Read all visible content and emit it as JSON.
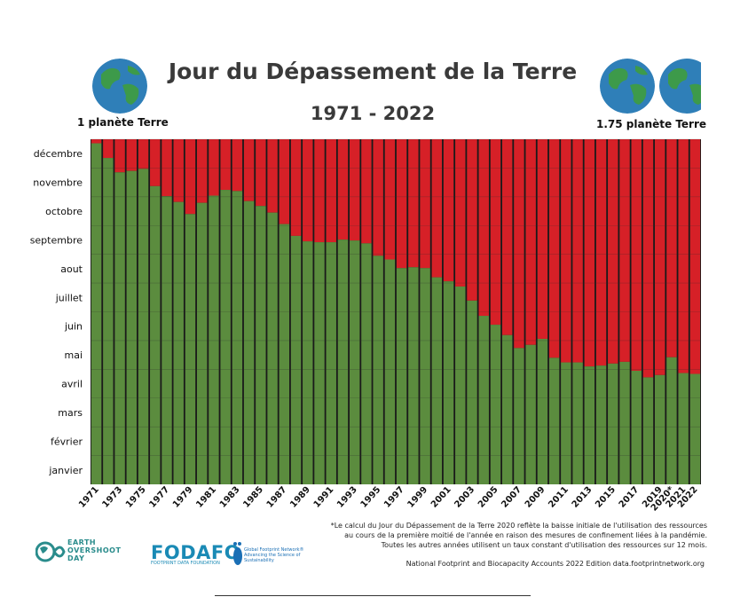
{
  "title": "Jour du Dépassement de la Terre",
  "subtitle": "1971 - 2022",
  "left_caption": "1 planète Terre",
  "right_caption": "1.75 planète Terre",
  "footnote_lines": [
    "*Le calcul du Jour du Dépassement de la Terre 2020 reflète la baisse initiale de l'utilisation des ressources",
    "au cours de la première moitié de l'année en raison des mesures de confinement liées à la pandémie.",
    "Toutes les autres années utilisent un taux constant d'utilisation des ressources sur 12 mois."
  ],
  "source": "National Footprint and Biocapacity Accounts 2022  Edition data.footprintnetwork.org",
  "logos": {
    "earth_overshoot_day": "EARTH OVERSHOOT DAY",
    "fodafo": "FODAFO",
    "fodafo_sub": "FOOTPRINT DATA FOUNDATION",
    "gfn": "Global Footprint Network® Advancing the Science of Sustainability"
  },
  "colors": {
    "green": "#5b8c3e",
    "red": "#d62027",
    "gridline": "#222222"
  },
  "chart_data": {
    "type": "bar",
    "stacked": true,
    "series": [
      {
        "name": "",
        "color": "#5b8c3e"
      },
      {
        "name": "",
        "color": "#d62027"
      }
    ],
    "y_ticks": [
      "janvier",
      "février",
      "mars",
      "avril",
      "mai",
      "juin",
      "juillet",
      "aout",
      "septembre",
      "octobre",
      "novembre",
      "décembre"
    ],
    "ylim": [
      0,
      12
    ],
    "x_tick_labels": [
      "1971",
      "1973",
      "1975",
      "1977",
      "1979",
      "1981",
      "1983",
      "1985",
      "1987",
      "1989",
      "1991",
      "1993",
      "1995",
      "1997",
      "1999",
      "2001",
      "2003",
      "2005",
      "2007",
      "2009",
      "2011",
      "2013",
      "2015",
      "2017",
      "2019",
      "2020*",
      "2021",
      "2022"
    ],
    "categories": [
      "1971",
      "1972",
      "1973",
      "1974",
      "1975",
      "1976",
      "1977",
      "1978",
      "1979",
      "1980",
      "1981",
      "1982",
      "1983",
      "1984",
      "1985",
      "1986",
      "1987",
      "1988",
      "1989",
      "1990",
      "1991",
      "1992",
      "1993",
      "1994",
      "1995",
      "1996",
      "1997",
      "1998",
      "1999",
      "2000",
      "2001",
      "2002",
      "2003",
      "2004",
      "2005",
      "2006",
      "2007",
      "2008",
      "2009",
      "2010",
      "2011",
      "2012",
      "2013",
      "2014",
      "2015",
      "2016",
      "2017",
      "2018",
      "2019",
      "2020*",
      "2021",
      "2022"
    ],
    "values_months": [
      11.86,
      11.35,
      10.85,
      10.9,
      10.97,
      10.37,
      10.02,
      9.82,
      9.4,
      9.79,
      10.04,
      10.24,
      10.2,
      9.85,
      9.68,
      9.45,
      9.05,
      8.64,
      8.45,
      8.42,
      8.42,
      8.51,
      8.48,
      8.38,
      7.95,
      7.82,
      7.52,
      7.55,
      7.52,
      7.2,
      7.06,
      6.88,
      6.39,
      5.86,
      5.55,
      5.19,
      4.74,
      4.85,
      5.06,
      4.4,
      4.24,
      4.24,
      4.1,
      4.13,
      4.2,
      4.26,
      3.95,
      3.72,
      3.8,
      4.42,
      3.87,
      3.84
    ]
  }
}
